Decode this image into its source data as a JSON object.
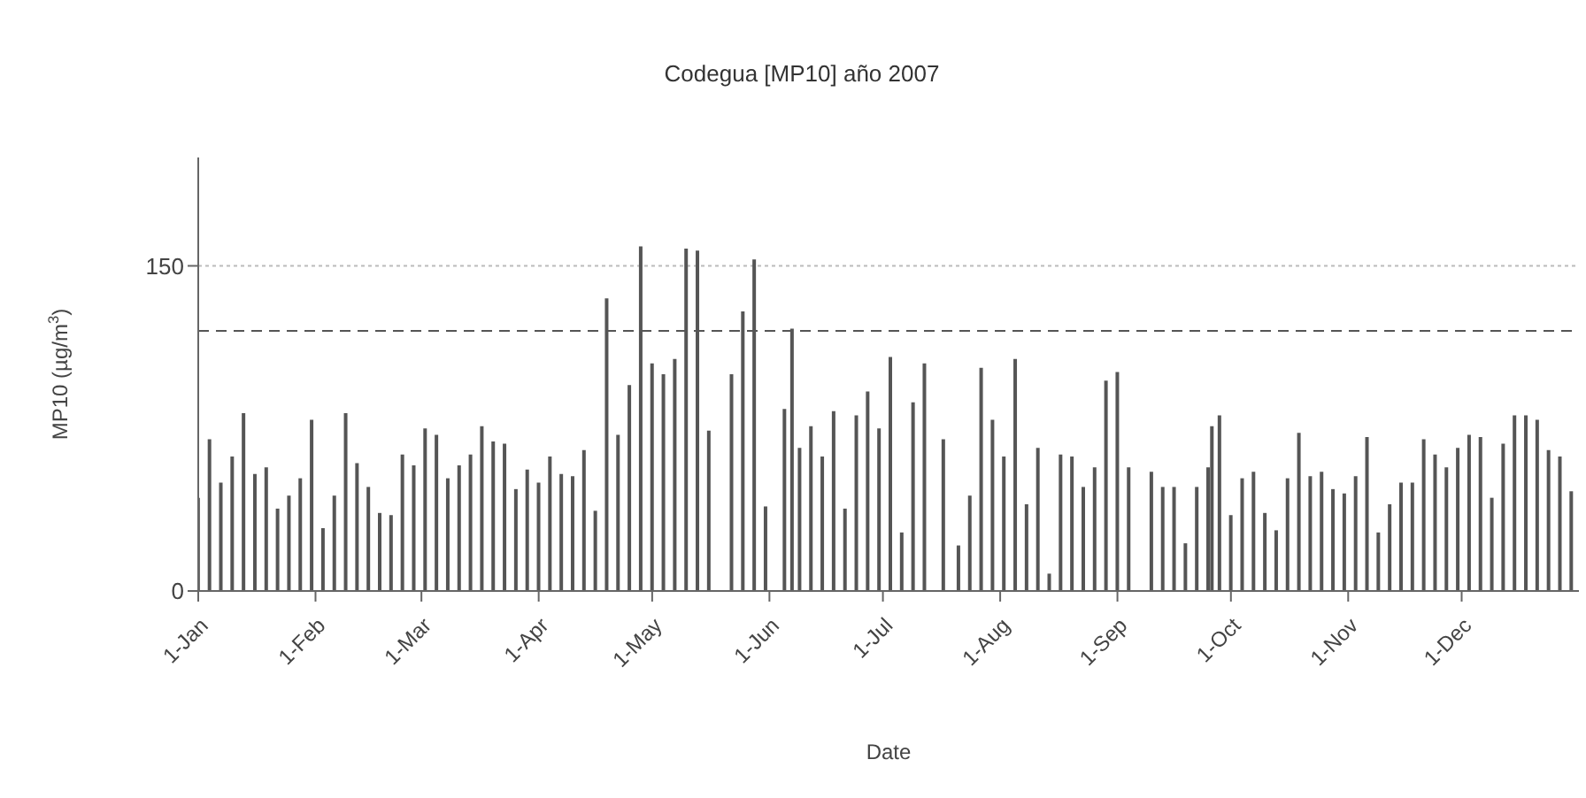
{
  "chart_data": {
    "type": "bar",
    "title": "Codegua [MP10] año 2007",
    "xlabel": "Date",
    "ylabel": "MP10 (µg/m$^{3}$)",
    "x": [
      "2007-01-01",
      "2007-01-04",
      "2007-01-07",
      "2007-01-10",
      "2007-01-13",
      "2007-01-16",
      "2007-01-19",
      "2007-01-22",
      "2007-01-25",
      "2007-01-28",
      "2007-01-31",
      "2007-02-03",
      "2007-02-06",
      "2007-02-09",
      "2007-02-12",
      "2007-02-15",
      "2007-02-18",
      "2007-02-21",
      "2007-02-24",
      "2007-02-27",
      "2007-03-02",
      "2007-03-05",
      "2007-03-08",
      "2007-03-11",
      "2007-03-14",
      "2007-03-17",
      "2007-03-20",
      "2007-03-23",
      "2007-03-26",
      "2007-03-29",
      "2007-04-01",
      "2007-04-04",
      "2007-04-07",
      "2007-04-10",
      "2007-04-13",
      "2007-04-16",
      "2007-04-19",
      "2007-04-22",
      "2007-04-25",
      "2007-04-28",
      "2007-05-01",
      "2007-05-04",
      "2007-05-07",
      "2007-05-10",
      "2007-05-13",
      "2007-05-16",
      "2007-05-22",
      "2007-05-25",
      "2007-05-28",
      "2007-05-31",
      "2007-06-05",
      "2007-06-07",
      "2007-06-09",
      "2007-06-12",
      "2007-06-15",
      "2007-06-18",
      "2007-06-21",
      "2007-06-24",
      "2007-06-27",
      "2007-06-30",
      "2007-07-03",
      "2007-07-06",
      "2007-07-09",
      "2007-07-12",
      "2007-07-17",
      "2007-07-21",
      "2007-07-24",
      "2007-07-27",
      "2007-07-30",
      "2007-08-02",
      "2007-08-05",
      "2007-08-08",
      "2007-08-11",
      "2007-08-14",
      "2007-08-17",
      "2007-08-20",
      "2007-08-23",
      "2007-08-26",
      "2007-08-29",
      "2007-09-01",
      "2007-09-04",
      "2007-09-10",
      "2007-09-13",
      "2007-09-16",
      "2007-09-19",
      "2007-09-22",
      "2007-09-25",
      "2007-09-26",
      "2007-09-28",
      "2007-10-01",
      "2007-10-04",
      "2007-10-07",
      "2007-10-10",
      "2007-10-13",
      "2007-10-16",
      "2007-10-19",
      "2007-10-22",
      "2007-10-25",
      "2007-10-28",
      "2007-10-31",
      "2007-11-03",
      "2007-11-06",
      "2007-11-09",
      "2007-11-12",
      "2007-11-15",
      "2007-11-18",
      "2007-11-21",
      "2007-11-24",
      "2007-11-27",
      "2007-11-30",
      "2007-12-03",
      "2007-12-06",
      "2007-12-09",
      "2007-12-12",
      "2007-12-15",
      "2007-12-18",
      "2007-12-21",
      "2007-12-24",
      "2007-12-27",
      "2007-12-30"
    ],
    "values": [
      43,
      70,
      50,
      62,
      82,
      54,
      57,
      38,
      44,
      52,
      79,
      29,
      44,
      82,
      59,
      48,
      36,
      35,
      63,
      58,
      75,
      72,
      52,
      58,
      63,
      76,
      69,
      68,
      47,
      56,
      50,
      62,
      54,
      53,
      65,
      37,
      135,
      72,
      95,
      159,
      105,
      100,
      107,
      158,
      157,
      74,
      100,
      129,
      153,
      39,
      84,
      121,
      66,
      76,
      62,
      83,
      38,
      81,
      92,
      75,
      108,
      27,
      87,
      105,
      70,
      21,
      44,
      103,
      79,
      62,
      107,
      40,
      66,
      8,
      63,
      62,
      48,
      57,
      97,
      101,
      57,
      55,
      48,
      48,
      22,
      48,
      57,
      76,
      81,
      35,
      52,
      55,
      36,
      28,
      52,
      73,
      53,
      55,
      47,
      45,
      53,
      71,
      27,
      40,
      50,
      50,
      70,
      63,
      57,
      66,
      72,
      71,
      43,
      68,
      81,
      81,
      79,
      65,
      62,
      46
    ],
    "color": "#555555",
    "xlim": [
      "2007-01-01",
      "2008-01-01"
    ],
    "xticks": [
      {
        "value": "2007-01-01",
        "label": "1-Jan"
      },
      {
        "value": "2007-02-01",
        "label": "1-Feb"
      },
      {
        "value": "2007-03-01",
        "label": "1-Mar"
      },
      {
        "value": "2007-04-01",
        "label": "1-Apr"
      },
      {
        "value": "2007-05-01",
        "label": "1-May"
      },
      {
        "value": "2007-06-01",
        "label": "1-Jun"
      },
      {
        "value": "2007-07-01",
        "label": "1-Jul"
      },
      {
        "value": "2007-08-01",
        "label": "1-Aug"
      },
      {
        "value": "2007-09-01",
        "label": "1-Sep"
      },
      {
        "value": "2007-10-01",
        "label": "1-Oct"
      },
      {
        "value": "2007-11-01",
        "label": "1-Nov"
      },
      {
        "value": "2007-12-01",
        "label": "1-Dec"
      }
    ],
    "ylim": [
      0,
      200
    ],
    "yticks": [
      0,
      150
    ],
    "grid": "y",
    "ref_lines": [
      {
        "axis": "y",
        "value": 120,
        "line_style": "dashed",
        "color": "#555555"
      }
    ]
  }
}
